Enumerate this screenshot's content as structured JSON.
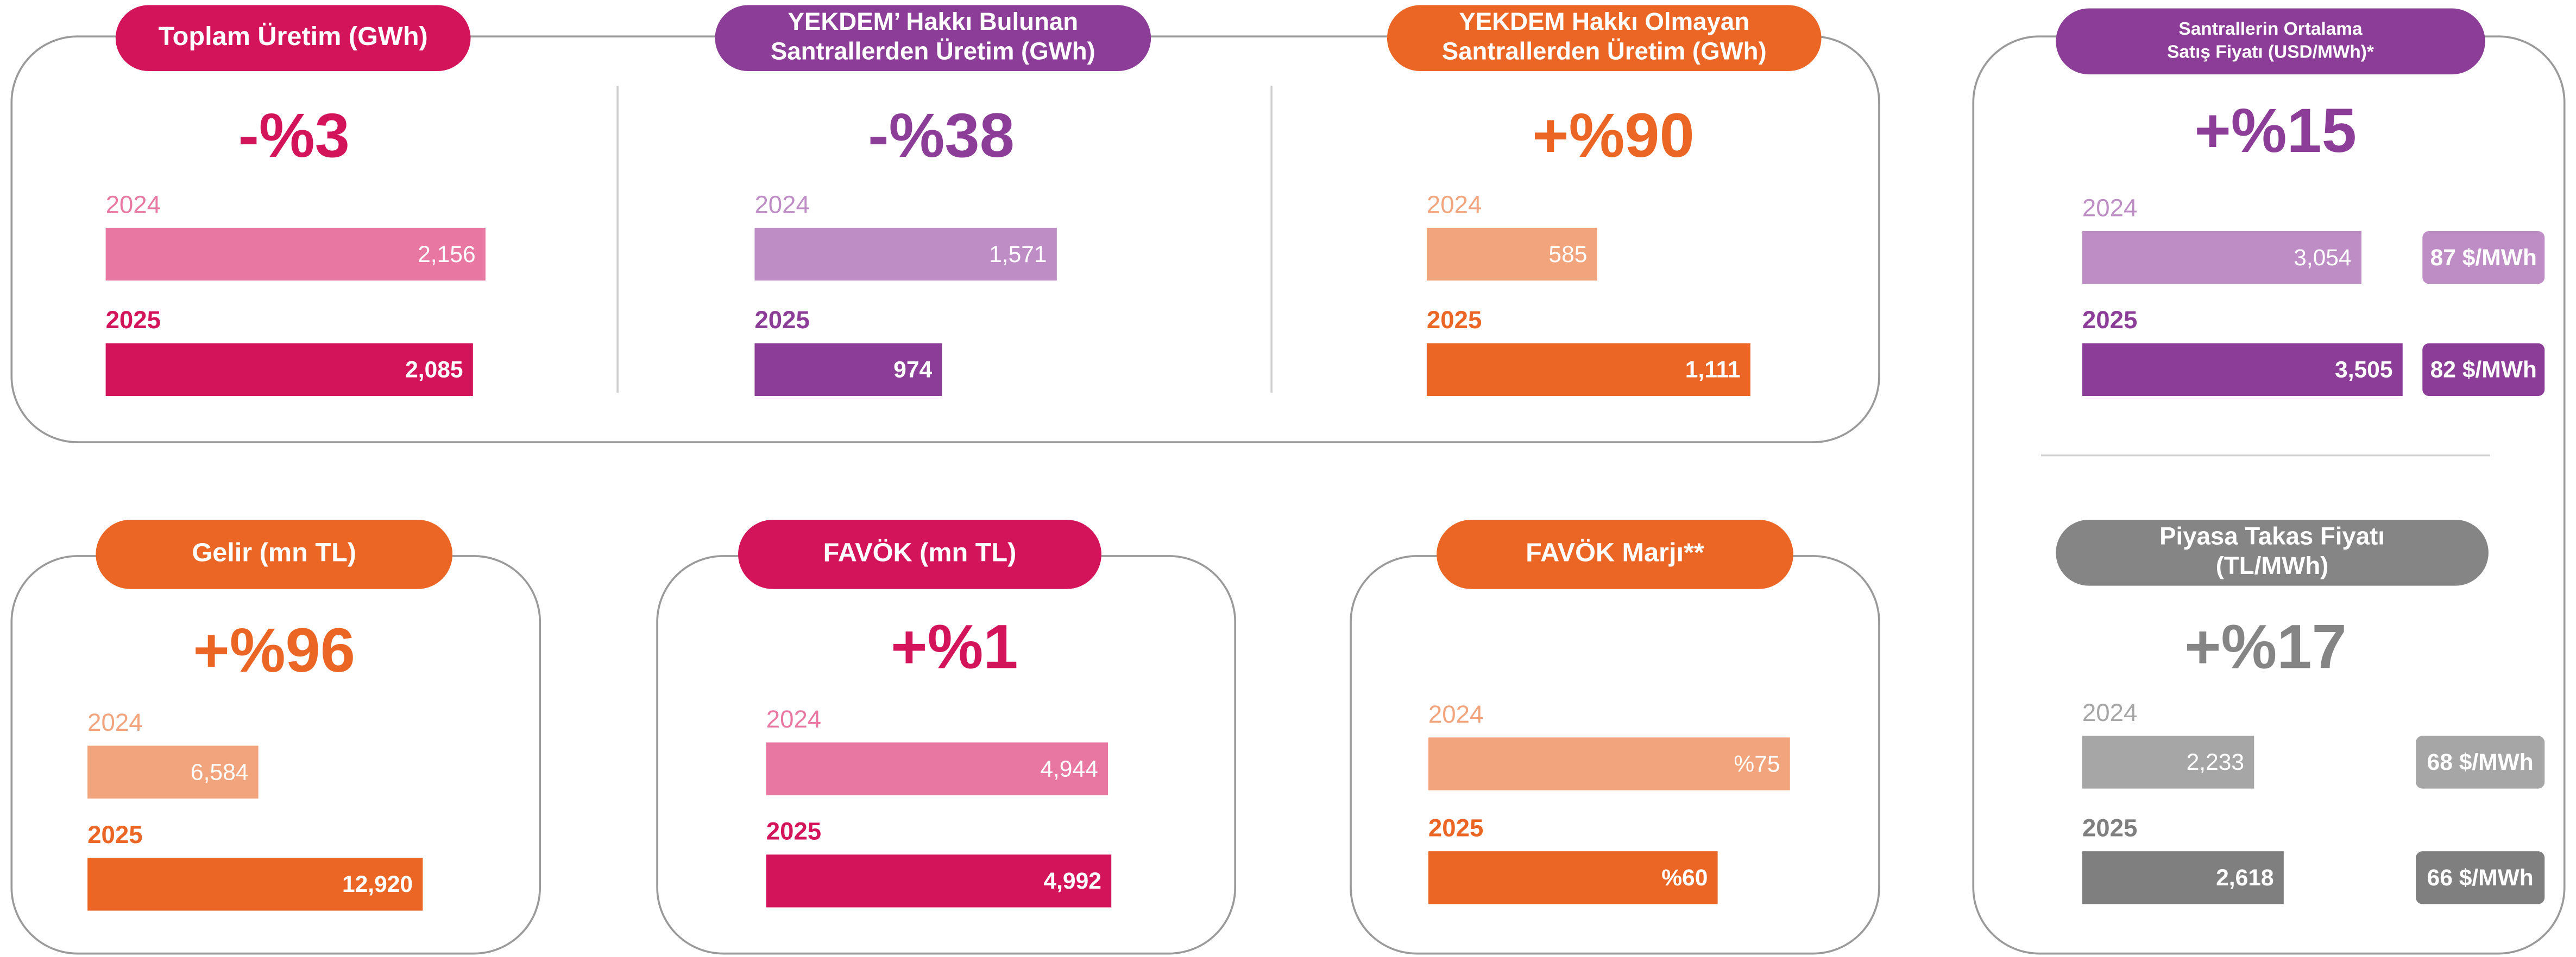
{
  "chart_data": [
    {
      "type": "bar",
      "title": [
        "Toplam Üretim (GWh)"
      ],
      "change": "-%3",
      "categories": [
        "2024",
        "2025"
      ],
      "values": [
        2156,
        2085
      ],
      "value_labels": [
        "2,156",
        "2,085"
      ],
      "colors": [
        "#e878a2",
        "#d4145a"
      ],
      "color": "#d4145a"
    },
    {
      "type": "bar",
      "title": [
        "YEKDEM’ Hakkı Bulunan",
        "Santrallerden Üretim (GWh)"
      ],
      "change": "-%38",
      "categories": [
        "2024",
        "2025"
      ],
      "values": [
        1571,
        974
      ],
      "value_labels": [
        "1,571",
        "974"
      ],
      "colors": [
        "#bf8dc6",
        "#8b3d97"
      ],
      "color": "#8b3d97"
    },
    {
      "type": "bar",
      "title": [
        "YEKDEM Hakkı Olmayan",
        "Santrallerden Üretim (GWh)"
      ],
      "change": "+%90",
      "categories": [
        "2024",
        "2025"
      ],
      "values": [
        585,
        1111
      ],
      "value_labels": [
        "585",
        "1,111"
      ],
      "colors": [
        "#f2a47c",
        "#eb6624"
      ],
      "color": "#eb6624"
    },
    {
      "type": "bar",
      "title": [
        "Santrallerin Ortalama",
        "Satış Fiyatı (USD/MWh)*"
      ],
      "change": "+%15",
      "categories": [
        "2024",
        "2025"
      ],
      "values": [
        3054,
        3505
      ],
      "value_labels": [
        "3,054",
        "3,505"
      ],
      "unit_labels": [
        "87 $/MWh",
        "82 $/MWh"
      ],
      "colors": [
        "#bf8dc6",
        "#8b3d97"
      ],
      "color": "#8b3d97"
    },
    {
      "type": "bar",
      "title": [
        "Piyasa Takas Fiyatı",
        "(TL/MWh)"
      ],
      "change": "+%17",
      "categories": [
        "2024",
        "2025"
      ],
      "values": [
        2233,
        2618
      ],
      "value_labels": [
        "2,233",
        "2,618"
      ],
      "unit_labels": [
        "68 $/MWh",
        "66 $/MWh"
      ],
      "colors": [
        "#a6a6a6",
        "#7f7f7f"
      ],
      "color": "#858585"
    },
    {
      "type": "bar",
      "title": [
        "Gelir (mn TL)"
      ],
      "change": "+%96",
      "categories": [
        "2024",
        "2025"
      ],
      "values": [
        6584,
        12920
      ],
      "value_labels": [
        "6,584",
        "12,920"
      ],
      "colors": [
        "#f2a47c",
        "#eb6624"
      ],
      "color": "#eb6624"
    },
    {
      "type": "bar",
      "title": [
        "FAVÖK (mn TL)"
      ],
      "change": "+%1",
      "categories": [
        "2024",
        "2025"
      ],
      "values": [
        4944,
        4992
      ],
      "value_labels": [
        "4,944",
        "4,992"
      ],
      "colors": [
        "#e878a2",
        "#d4145a"
      ],
      "color": "#d4145a"
    },
    {
      "type": "bar",
      "title": [
        "FAVÖK Marjı**"
      ],
      "categories": [
        "2024",
        "2025"
      ],
      "values": [
        75,
        60
      ],
      "value_labels": [
        "%75",
        "%60"
      ],
      "colors": [
        "#f2a47c",
        "#eb6624"
      ],
      "color": "#eb6624"
    }
  ]
}
